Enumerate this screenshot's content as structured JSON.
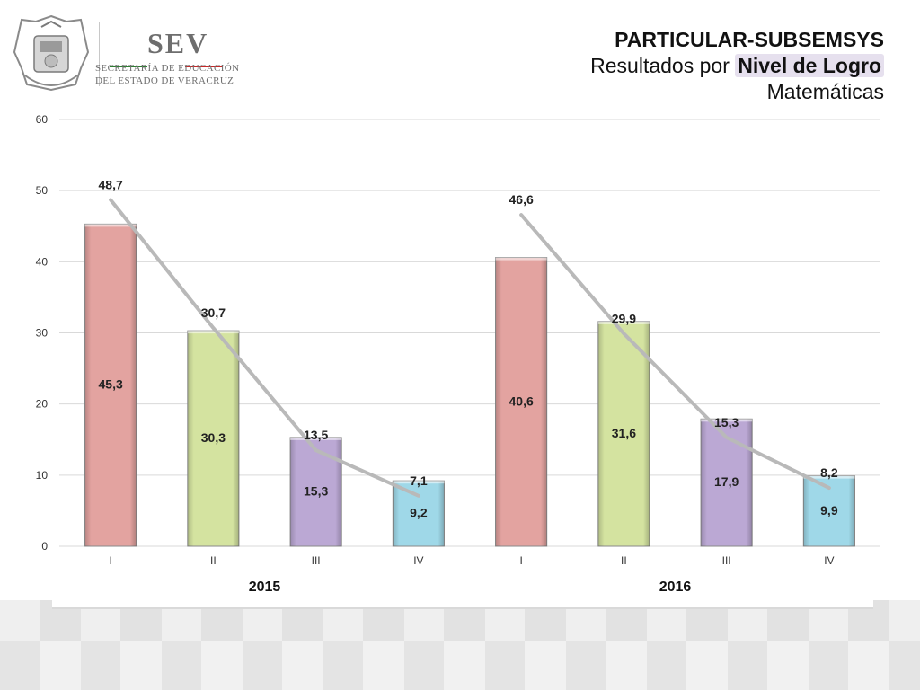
{
  "header": {
    "logo_brand": "SEV",
    "logo_line1": "SECRETARÍA DE EDUCACIÓN",
    "logo_line2": "DEL ESTADO DE VERACRUZ",
    "title_line1": "PARTICULAR-SUBSEMSYS",
    "title_line2_prefix": "Resultados por ",
    "title_line2_highlight": "Nivel de Logro",
    "title_line3": "Matemáticas"
  },
  "colors": {
    "I": "#e3a3a0",
    "II": "#d4e3a0",
    "III": "#bba8d4",
    "IV": "#9fd8e8",
    "line": "#b9b9b9",
    "grid": "#d9d9d9"
  },
  "chart_data": {
    "type": "bar",
    "groups": [
      "2015",
      "2016"
    ],
    "categories": [
      "I",
      "II",
      "III",
      "IV"
    ],
    "ylim": [
      0,
      60
    ],
    "yticks": [
      0,
      10,
      20,
      30,
      40,
      50,
      60
    ],
    "series": [
      {
        "kind": "bar",
        "values": [
          [
            45.3,
            30.3,
            15.3,
            9.2
          ],
          [
            40.6,
            31.6,
            17.9,
            9.9
          ]
        ],
        "labels": [
          [
            "45,3",
            "30,3",
            "15,3",
            "9,2"
          ],
          [
            "40,6",
            "31,6",
            "17,9",
            "9,9"
          ]
        ]
      },
      {
        "kind": "line",
        "values": [
          [
            48.7,
            30.7,
            13.5,
            7.1
          ],
          [
            46.6,
            29.9,
            15.3,
            8.2
          ]
        ],
        "labels": [
          [
            "48,7",
            "30,7",
            "13,5",
            "7,1"
          ],
          [
            "46,6",
            "29,9",
            "15,3",
            "8,2"
          ]
        ]
      }
    ]
  }
}
